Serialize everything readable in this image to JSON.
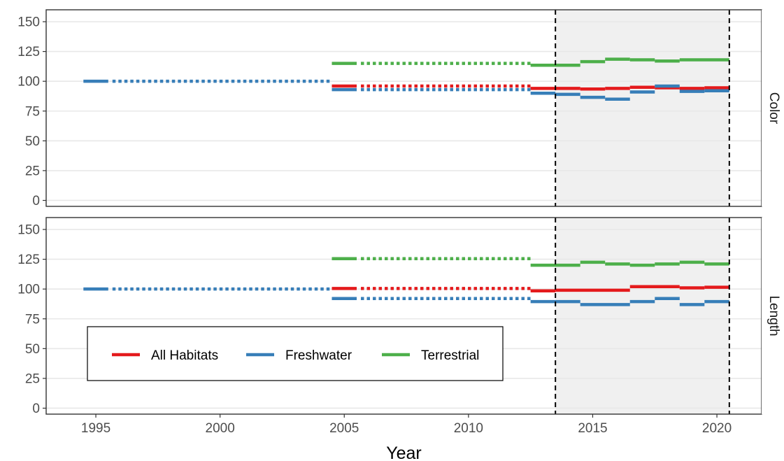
{
  "chart_data": {
    "type": "line",
    "xlabel": "Year",
    "ylabel": "",
    "xlim": [
      1993,
      2021.8
    ],
    "ylim": [
      -5,
      160
    ],
    "x_ticks": [
      1995,
      2000,
      2005,
      2010,
      2015,
      2020
    ],
    "y_ticks": [
      0,
      25,
      50,
      75,
      100,
      125,
      150
    ],
    "grid": true,
    "shaded_period": [
      2013.5,
      2020.5
    ],
    "vlines": [
      2013.5,
      2020.5
    ],
    "legend": {
      "placement": "inside-bottom-left (Length panel)",
      "entries": [
        "All Habitats",
        "Freshwater",
        "Terrestrial"
      ]
    },
    "colors": {
      "All Habitats": "#E41A1C",
      "Freshwater": "#377EB8",
      "Terrestrial": "#4DAF4A"
    },
    "panels": [
      {
        "label": "Color",
        "series": [
          {
            "name": "All Habitats",
            "color": "#E41A1C",
            "segments": [
              {
                "style": "solid",
                "x": [
                  2004.5,
                  2005.5
                ],
                "y": [
                  96,
                  96
                ]
              },
              {
                "style": "dotted",
                "x": [
                  2005.5,
                  2012.5
                ],
                "y": [
                  96,
                  96
                ]
              },
              {
                "style": "solid",
                "x": [
                  2012.5,
                  2014.5
                ],
                "y": [
                  94,
                  94
                ]
              },
              {
                "style": "solid",
                "x": [
                  2014.5,
                  2015.5
                ],
                "y": [
                  93.5,
                  93.5
                ]
              },
              {
                "style": "solid",
                "x": [
                  2015.5,
                  2016.5
                ],
                "y": [
                  94,
                  94
                ]
              },
              {
                "style": "solid",
                "x": [
                  2016.5,
                  2017.5
                ],
                "y": [
                  95,
                  95
                ]
              },
              {
                "style": "solid",
                "x": [
                  2017.5,
                  2018.5
                ],
                "y": [
                  94.5,
                  94.5
                ]
              },
              {
                "style": "solid",
                "x": [
                  2018.5,
                  2019.5
                ],
                "y": [
                  94,
                  94
                ]
              },
              {
                "style": "solid",
                "x": [
                  2019.5,
                  2020.5
                ],
                "y": [
                  94.5,
                  94.5
                ]
              }
            ]
          },
          {
            "name": "Freshwater",
            "color": "#377EB8",
            "segments": [
              {
                "style": "solid",
                "x": [
                  1994.5,
                  1995.5
                ],
                "y": [
                  100,
                  100
                ]
              },
              {
                "style": "dotted",
                "x": [
                  1995.5,
                  2004.5
                ],
                "y": [
                  100,
                  100
                ]
              },
              {
                "style": "solid",
                "x": [
                  2004.5,
                  2005.5
                ],
                "y": [
                  93,
                  93
                ]
              },
              {
                "style": "dotted",
                "x": [
                  2005.5,
                  2012.5
                ],
                "y": [
                  93,
                  93
                ]
              },
              {
                "style": "solid",
                "x": [
                  2012.5,
                  2013.5
                ],
                "y": [
                  90,
                  90
                ]
              },
              {
                "style": "solid",
                "x": [
                  2013.5,
                  2014.5
                ],
                "y": [
                  89,
                  89
                ]
              },
              {
                "style": "solid",
                "x": [
                  2014.5,
                  2015.5
                ],
                "y": [
                  86.5,
                  86.5
                ]
              },
              {
                "style": "solid",
                "x": [
                  2015.5,
                  2016.5
                ],
                "y": [
                  85,
                  85
                ]
              },
              {
                "style": "solid",
                "x": [
                  2016.5,
                  2017.5
                ],
                "y": [
                  91,
                  91
                ]
              },
              {
                "style": "solid",
                "x": [
                  2017.5,
                  2018.5
                ],
                "y": [
                  96,
                  96
                ]
              },
              {
                "style": "solid",
                "x": [
                  2018.5,
                  2019.5
                ],
                "y": [
                  91.5,
                  91.5
                ]
              },
              {
                "style": "solid",
                "x": [
                  2019.5,
                  2020.5
                ],
                "y": [
                  92,
                  92
                ]
              }
            ]
          },
          {
            "name": "Terrestrial",
            "color": "#4DAF4A",
            "segments": [
              {
                "style": "solid",
                "x": [
                  2004.5,
                  2005.5
                ],
                "y": [
                  115,
                  115
                ]
              },
              {
                "style": "dotted",
                "x": [
                  2005.5,
                  2012.5
                ],
                "y": [
                  115,
                  115
                ]
              },
              {
                "style": "solid",
                "x": [
                  2012.5,
                  2014.5
                ],
                "y": [
                  113.5,
                  113.5
                ]
              },
              {
                "style": "solid",
                "x": [
                  2014.5,
                  2015.5
                ],
                "y": [
                  116.5,
                  116.5
                ]
              },
              {
                "style": "solid",
                "x": [
                  2015.5,
                  2016.5
                ],
                "y": [
                  118.5,
                  118.5
                ]
              },
              {
                "style": "solid",
                "x": [
                  2016.5,
                  2017.5
                ],
                "y": [
                  118,
                  118
                ]
              },
              {
                "style": "solid",
                "x": [
                  2017.5,
                  2018.5
                ],
                "y": [
                  117,
                  117
                ]
              },
              {
                "style": "solid",
                "x": [
                  2018.5,
                  2020.5
                ],
                "y": [
                  118,
                  118
                ]
              }
            ]
          }
        ]
      },
      {
        "label": "Length",
        "series": [
          {
            "name": "All Habitats",
            "color": "#E41A1C",
            "segments": [
              {
                "style": "solid",
                "x": [
                  2004.5,
                  2005.5
                ],
                "y": [
                  100.5,
                  100.5
                ]
              },
              {
                "style": "dotted",
                "x": [
                  2005.5,
                  2012.5
                ],
                "y": [
                  100.5,
                  100.5
                ]
              },
              {
                "style": "solid",
                "x": [
                  2012.5,
                  2013.5
                ],
                "y": [
                  98.5,
                  98.5
                ]
              },
              {
                "style": "solid",
                "x": [
                  2013.5,
                  2016.5
                ],
                "y": [
                  99,
                  99
                ]
              },
              {
                "style": "solid",
                "x": [
                  2016.5,
                  2018.5
                ],
                "y": [
                  102,
                  102
                ]
              },
              {
                "style": "solid",
                "x": [
                  2018.5,
                  2019.5
                ],
                "y": [
                  101,
                  101
                ]
              },
              {
                "style": "solid",
                "x": [
                  2019.5,
                  2020.5
                ],
                "y": [
                  101.5,
                  101.5
                ]
              }
            ]
          },
          {
            "name": "Freshwater",
            "color": "#377EB8",
            "segments": [
              {
                "style": "solid",
                "x": [
                  1994.5,
                  1995.5
                ],
                "y": [
                  100,
                  100
                ]
              },
              {
                "style": "dotted",
                "x": [
                  1995.5,
                  2004.5
                ],
                "y": [
                  100,
                  100
                ]
              },
              {
                "style": "solid",
                "x": [
                  2004.5,
                  2005.5
                ],
                "y": [
                  92,
                  92
                ]
              },
              {
                "style": "dotted",
                "x": [
                  2005.5,
                  2012.5
                ],
                "y": [
                  92,
                  92
                ]
              },
              {
                "style": "solid",
                "x": [
                  2012.5,
                  2014.5
                ],
                "y": [
                  89.5,
                  89.5
                ]
              },
              {
                "style": "solid",
                "x": [
                  2014.5,
                  2016.5
                ],
                "y": [
                  87,
                  87
                ]
              },
              {
                "style": "solid",
                "x": [
                  2016.5,
                  2017.5
                ],
                "y": [
                  89.5,
                  89.5
                ]
              },
              {
                "style": "solid",
                "x": [
                  2017.5,
                  2018.5
                ],
                "y": [
                  92,
                  92
                ]
              },
              {
                "style": "solid",
                "x": [
                  2018.5,
                  2019.5
                ],
                "y": [
                  87,
                  87
                ]
              },
              {
                "style": "solid",
                "x": [
                  2019.5,
                  2020.5
                ],
                "y": [
                  89.5,
                  89.5
                ]
              }
            ]
          },
          {
            "name": "Terrestrial",
            "color": "#4DAF4A",
            "segments": [
              {
                "style": "solid",
                "x": [
                  2004.5,
                  2005.5
                ],
                "y": [
                  125.5,
                  125.5
                ]
              },
              {
                "style": "dotted",
                "x": [
                  2005.5,
                  2012.5
                ],
                "y": [
                  125.5,
                  125.5
                ]
              },
              {
                "style": "solid",
                "x": [
                  2012.5,
                  2014.5
                ],
                "y": [
                  120,
                  120
                ]
              },
              {
                "style": "solid",
                "x": [
                  2014.5,
                  2015.5
                ],
                "y": [
                  122.5,
                  122.5
                ]
              },
              {
                "style": "solid",
                "x": [
                  2015.5,
                  2016.5
                ],
                "y": [
                  121,
                  121
                ]
              },
              {
                "style": "solid",
                "x": [
                  2016.5,
                  2017.5
                ],
                "y": [
                  120,
                  120
                ]
              },
              {
                "style": "solid",
                "x": [
                  2017.5,
                  2018.5
                ],
                "y": [
                  121,
                  121
                ]
              },
              {
                "style": "solid",
                "x": [
                  2018.5,
                  2019.5
                ],
                "y": [
                  122.5,
                  122.5
                ]
              },
              {
                "style": "solid",
                "x": [
                  2019.5,
                  2020.5
                ],
                "y": [
                  121,
                  121
                ]
              }
            ]
          }
        ]
      }
    ]
  }
}
